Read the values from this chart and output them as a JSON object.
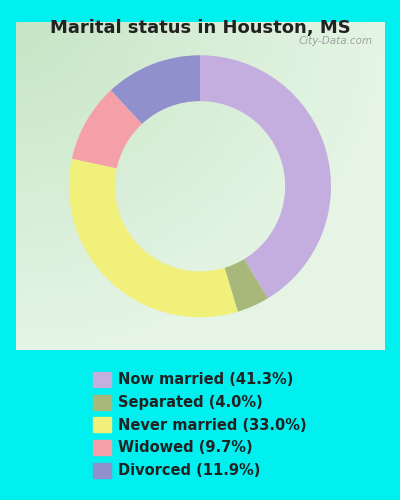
{
  "title": "Marital status in Houston, MS",
  "title_fontsize": 13,
  "background_outer": "#00EFEF",
  "watermark": "City-Data.com",
  "slices": [
    {
      "label": "Now married (41.3%)",
      "value": 41.3,
      "color": "#c4aee0"
    },
    {
      "label": "Separated (4.0%)",
      "value": 4.0,
      "color": "#a8b87a"
    },
    {
      "label": "Never married (33.0%)",
      "value": 33.0,
      "color": "#f0f07a"
    },
    {
      "label": "Widowed (9.7%)",
      "value": 9.7,
      "color": "#f5a0a8"
    },
    {
      "label": "Divorced (11.9%)",
      "value": 11.9,
      "color": "#9090cc"
    }
  ],
  "donut_width": 0.35,
  "start_angle": 90,
  "legend_fontsize": 10.5,
  "chart_bg_color": "#d8edd8",
  "chart_bg_alpha": 1.0
}
